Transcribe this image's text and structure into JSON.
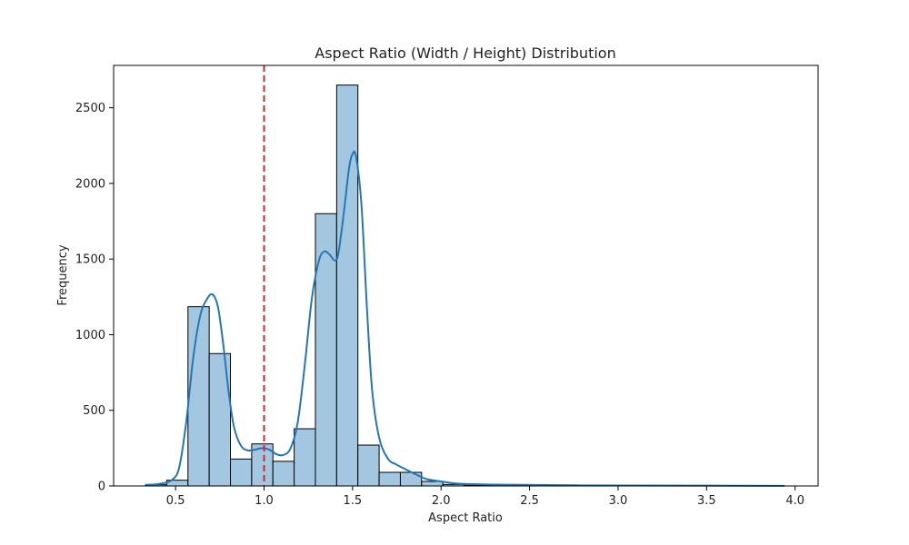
{
  "chart_data": {
    "type": "histogram",
    "title": "Aspect Ratio (Width / Height) Distribution",
    "xlabel": "Aspect Ratio",
    "ylabel": "Frequency",
    "xlim": [
      0.15,
      4.13
    ],
    "ylim": [
      0,
      2780
    ],
    "xticks": [
      0.5,
      1.0,
      1.5,
      2.0,
      2.5,
      3.0,
      3.5,
      4.0
    ],
    "xtick_labels": [
      "0.5",
      "1.0",
      "1.5",
      "2.0",
      "2.5",
      "3.0",
      "3.5",
      "4.0"
    ],
    "yticks": [
      0,
      500,
      1000,
      1500,
      2000,
      2500
    ],
    "ytick_labels": [
      "0",
      "500",
      "1000",
      "1500",
      "2000",
      "2500"
    ],
    "bin_width": 0.12,
    "bins": [
      {
        "x0": 0.33,
        "count": 8
      },
      {
        "x0": 0.45,
        "count": 38
      },
      {
        "x0": 0.57,
        "count": 1185
      },
      {
        "x0": 0.69,
        "count": 875
      },
      {
        "x0": 0.81,
        "count": 178
      },
      {
        "x0": 0.93,
        "count": 278
      },
      {
        "x0": 1.05,
        "count": 163
      },
      {
        "x0": 1.17,
        "count": 378
      },
      {
        "x0": 1.29,
        "count": 1800
      },
      {
        "x0": 1.41,
        "count": 2650
      },
      {
        "x0": 1.53,
        "count": 270
      },
      {
        "x0": 1.65,
        "count": 90
      },
      {
        "x0": 1.77,
        "count": 90
      },
      {
        "x0": 1.89,
        "count": 30
      },
      {
        "x0": 2.01,
        "count": 10
      },
      {
        "x0": 2.13,
        "count": 5
      },
      {
        "x0": 2.25,
        "count": 5
      },
      {
        "x0": 2.37,
        "count": 5
      },
      {
        "x0": 2.49,
        "count": 5
      },
      {
        "x0": 2.61,
        "count": 3
      },
      {
        "x0": 2.73,
        "count": 2
      },
      {
        "x0": 2.85,
        "count": 2
      },
      {
        "x0": 2.97,
        "count": 1
      },
      {
        "x0": 3.09,
        "count": 1
      },
      {
        "x0": 3.21,
        "count": 1
      },
      {
        "x0": 3.33,
        "count": 1
      },
      {
        "x0": 3.45,
        "count": 1
      },
      {
        "x0": 3.57,
        "count": 1
      },
      {
        "x0": 3.69,
        "count": 1
      },
      {
        "x0": 3.81,
        "count": 1
      }
    ],
    "kde": [
      [
        0.33,
        8
      ],
      [
        0.38,
        10
      ],
      [
        0.43,
        18
      ],
      [
        0.48,
        40
      ],
      [
        0.52,
        120
      ],
      [
        0.56,
        420
      ],
      [
        0.6,
        850
      ],
      [
        0.64,
        1130
      ],
      [
        0.68,
        1240
      ],
      [
        0.71,
        1265
      ],
      [
        0.74,
        1180
      ],
      [
        0.77,
        930
      ],
      [
        0.8,
        620
      ],
      [
        0.83,
        390
      ],
      [
        0.87,
        265
      ],
      [
        0.91,
        235
      ],
      [
        0.95,
        240
      ],
      [
        0.99,
        250
      ],
      [
        1.03,
        240
      ],
      [
        1.07,
        210
      ],
      [
        1.11,
        205
      ],
      [
        1.15,
        250
      ],
      [
        1.19,
        420
      ],
      [
        1.23,
        800
      ],
      [
        1.27,
        1240
      ],
      [
        1.31,
        1490
      ],
      [
        1.34,
        1550
      ],
      [
        1.37,
        1530
      ],
      [
        1.4,
        1490
      ],
      [
        1.42,
        1540
      ],
      [
        1.45,
        1800
      ],
      [
        1.48,
        2100
      ],
      [
        1.5,
        2195
      ],
      [
        1.52,
        2175
      ],
      [
        1.55,
        1860
      ],
      [
        1.58,
        1200
      ],
      [
        1.61,
        640
      ],
      [
        1.65,
        320
      ],
      [
        1.7,
        180
      ],
      [
        1.75,
        140
      ],
      [
        1.8,
        110
      ],
      [
        1.86,
        75
      ],
      [
        1.92,
        45
      ],
      [
        2.0,
        30
      ],
      [
        2.1,
        15
      ],
      [
        2.3,
        9
      ],
      [
        2.55,
        7
      ],
      [
        2.8,
        4
      ],
      [
        3.1,
        3
      ],
      [
        3.5,
        2
      ],
      [
        3.94,
        1
      ]
    ],
    "reference_line": {
      "x": 1.0
    },
    "colors": {
      "bar_fill": "#a3c6e1",
      "bar_edge": "#000000",
      "kde_line": "#2477b4",
      "reference_line": "#d62728",
      "axes": "#000000"
    }
  }
}
